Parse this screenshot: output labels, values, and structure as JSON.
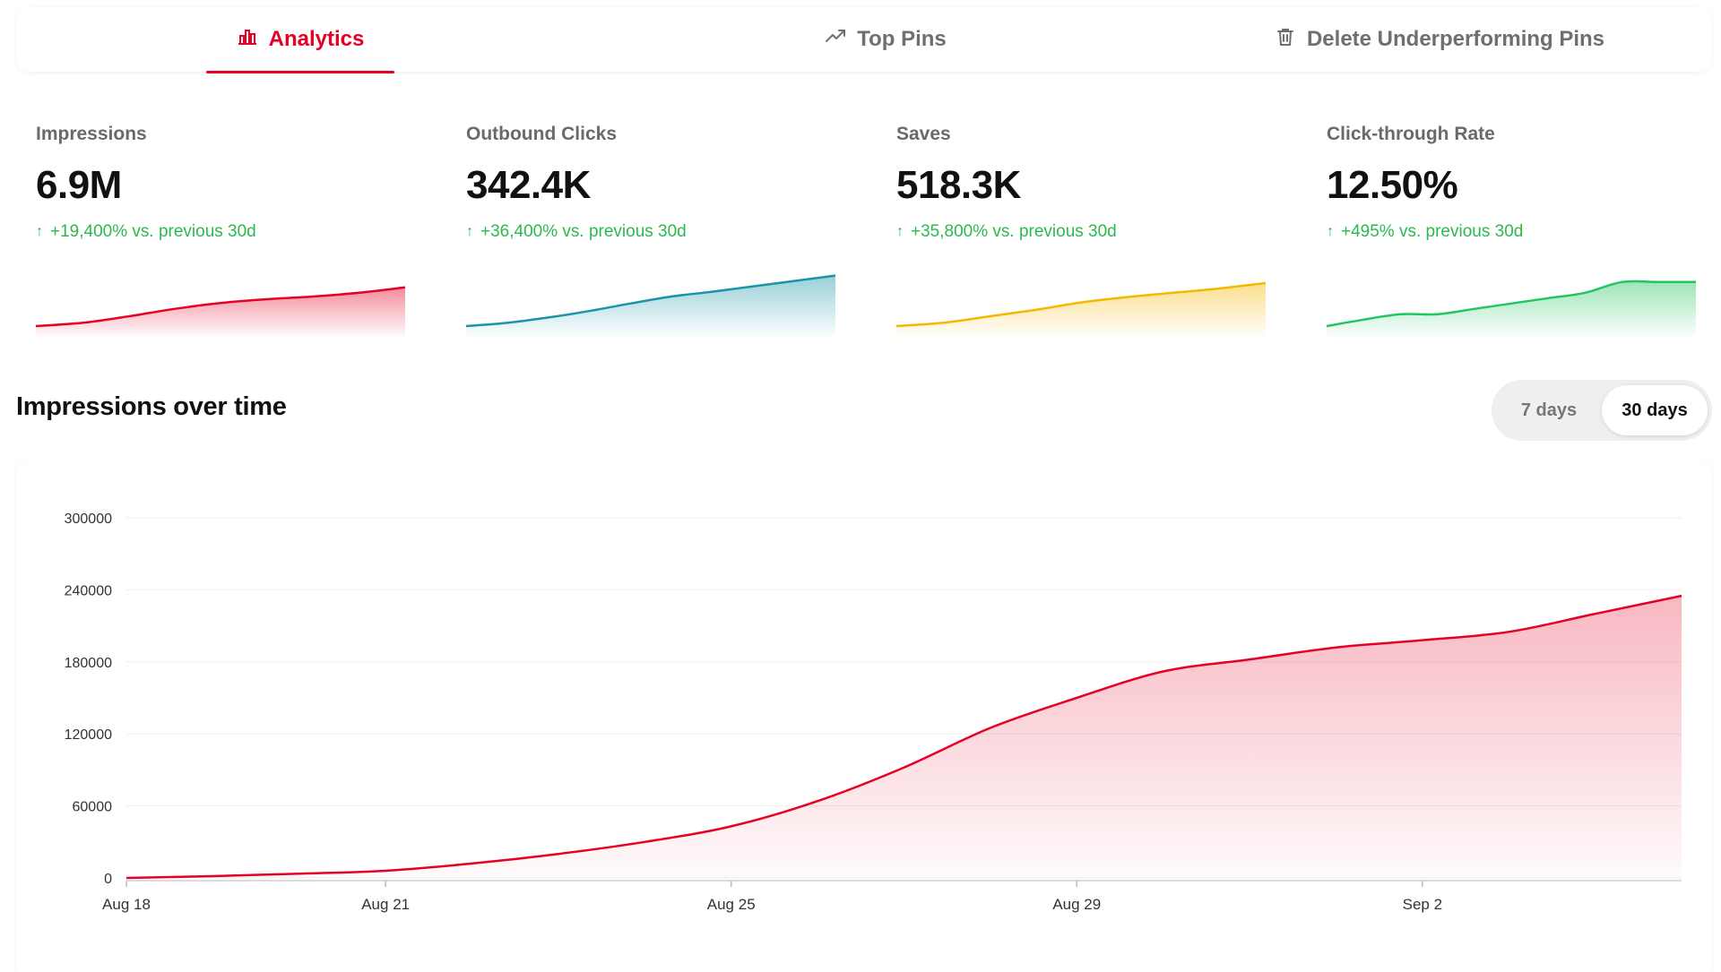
{
  "tabs": [
    {
      "label": "Analytics",
      "icon": "bar-chart-icon",
      "active": true
    },
    {
      "label": "Top Pins",
      "icon": "trending-up-icon",
      "active": false
    },
    {
      "label": "Delete Underperforming Pins",
      "icon": "trash-icon",
      "active": false
    }
  ],
  "metrics": [
    {
      "label": "Impressions",
      "value": "6.9M",
      "change": "+19,400% vs. previous 30d",
      "color": "#e60023",
      "trend": [
        0,
        0.06,
        0.18,
        0.32,
        0.43,
        0.5,
        0.55,
        0.62,
        0.72
      ]
    },
    {
      "label": "Outbound Clicks",
      "value": "342.4K",
      "change": "+36,400% vs. previous 30d",
      "color": "#1a95a8",
      "trend": [
        0,
        0.06,
        0.16,
        0.28,
        0.42,
        0.55,
        0.64,
        0.74,
        0.84,
        0.94
      ]
    },
    {
      "label": "Saves",
      "value": "518.3K",
      "change": "+35,800% vs. previous 30d",
      "color": "#f5b800",
      "trend": [
        0,
        0.06,
        0.18,
        0.3,
        0.44,
        0.54,
        0.62,
        0.7,
        0.8
      ]
    },
    {
      "label": "Click-through Rate",
      "value": "12.50%",
      "change": "+495% vs. previous 30d",
      "color": "#22c55e",
      "trend": [
        0,
        0.12,
        0.22,
        0.22,
        0.32,
        0.42,
        0.52,
        0.62,
        0.82,
        0.82,
        0.82
      ]
    }
  ],
  "section": {
    "title": "Impressions over time"
  },
  "range": {
    "options": [
      "7 days",
      "30 days"
    ],
    "selected": "30 days"
  },
  "chart_data": {
    "type": "area",
    "title": "Impressions over time",
    "x_ticks": [
      "Aug 18",
      "Aug 21",
      "Aug 25",
      "Aug 29",
      "Sep 2"
    ],
    "y_ticks": [
      0,
      60000,
      120000,
      180000,
      240000,
      300000
    ],
    "ylim": [
      0,
      300000
    ],
    "xlabel": "",
    "ylabel": "",
    "grid": true,
    "color": "#e60023",
    "series": [
      {
        "name": "Impressions",
        "x": [
          "Aug 18",
          "Aug 19",
          "Aug 20",
          "Aug 21",
          "Aug 22",
          "Aug 23",
          "Aug 24",
          "Aug 25",
          "Aug 26",
          "Aug 27",
          "Aug 28",
          "Aug 29",
          "Aug 30",
          "Aug 31",
          "Sep 1",
          "Sep 2",
          "Sep 3",
          "Sep 4",
          "Sep 5"
        ],
        "values": [
          0,
          1500,
          3500,
          6000,
          12000,
          20000,
          30000,
          43000,
          64000,
          92000,
          125000,
          150000,
          172000,
          182000,
          192000,
          198000,
          205000,
          220000,
          235000
        ]
      }
    ]
  }
}
